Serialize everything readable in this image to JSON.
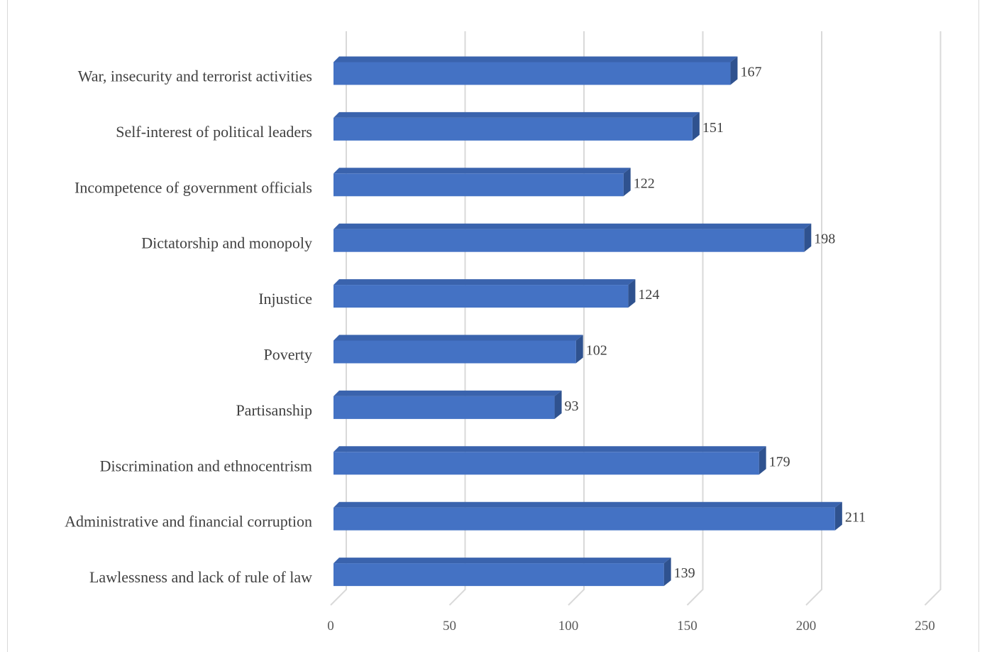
{
  "chart_data": {
    "type": "bar",
    "orientation": "horizontal",
    "style": "3d",
    "categories": [
      "War, insecurity and terrorist activities",
      "Self-interest of political leaders",
      "Incompetence of government officials",
      "Dictatorship and monopoly",
      "Injustice",
      "Poverty",
      "Partisanship",
      "Discrimination and ethnocentrism",
      "Administrative and financial corruption",
      "Lawlessness and lack of rule of law"
    ],
    "values": [
      167,
      151,
      122,
      198,
      124,
      102,
      93,
      179,
      211,
      139
    ],
    "xlim": [
      0,
      250
    ],
    "xticks": [
      "0",
      "50",
      "100",
      "150",
      "200",
      "250"
    ],
    "grid": true,
    "legend": "none",
    "colors": {
      "bar_front": "#4472c4",
      "bar_top": "#3a63ad",
      "bar_side": "#2f528f",
      "grid": "#d9d9d9",
      "text": "#404040"
    }
  }
}
